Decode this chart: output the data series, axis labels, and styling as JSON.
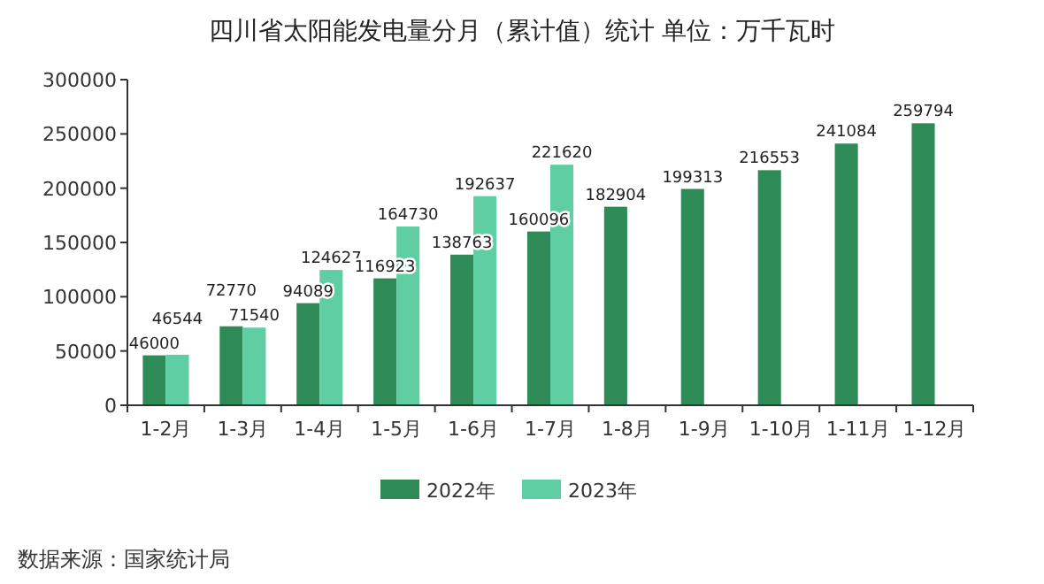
{
  "chart_data": {
    "type": "bar",
    "title": "四川省太阳能发电量分月（累计值）统计  单位：万千瓦时",
    "categories": [
      "1-2月",
      "1-3月",
      "1-4月",
      "1-5月",
      "1-6月",
      "1-7月",
      "1-8月",
      "1-9月",
      "1-10月",
      "1-11月",
      "1-12月"
    ],
    "series": [
      {
        "name": "2022年",
        "color": "#2e8b57",
        "values": [
          46000,
          72770,
          94089,
          116923,
          138763,
          160096,
          182904,
          199313,
          216553,
          241084,
          259794
        ]
      },
      {
        "name": "2023年",
        "color": "#5fcfa3",
        "values": [
          46544,
          71540,
          124627,
          164730,
          192637,
          221620,
          null,
          null,
          null,
          null,
          null
        ]
      }
    ],
    "ylim": [
      0,
      300000
    ],
    "yticks": [
      0,
      50000,
      100000,
      150000,
      200000,
      250000,
      300000
    ],
    "grid": false,
    "legend": "bottom",
    "data_labels": true,
    "annotations": [
      "数据来源：国家统计局"
    ]
  }
}
